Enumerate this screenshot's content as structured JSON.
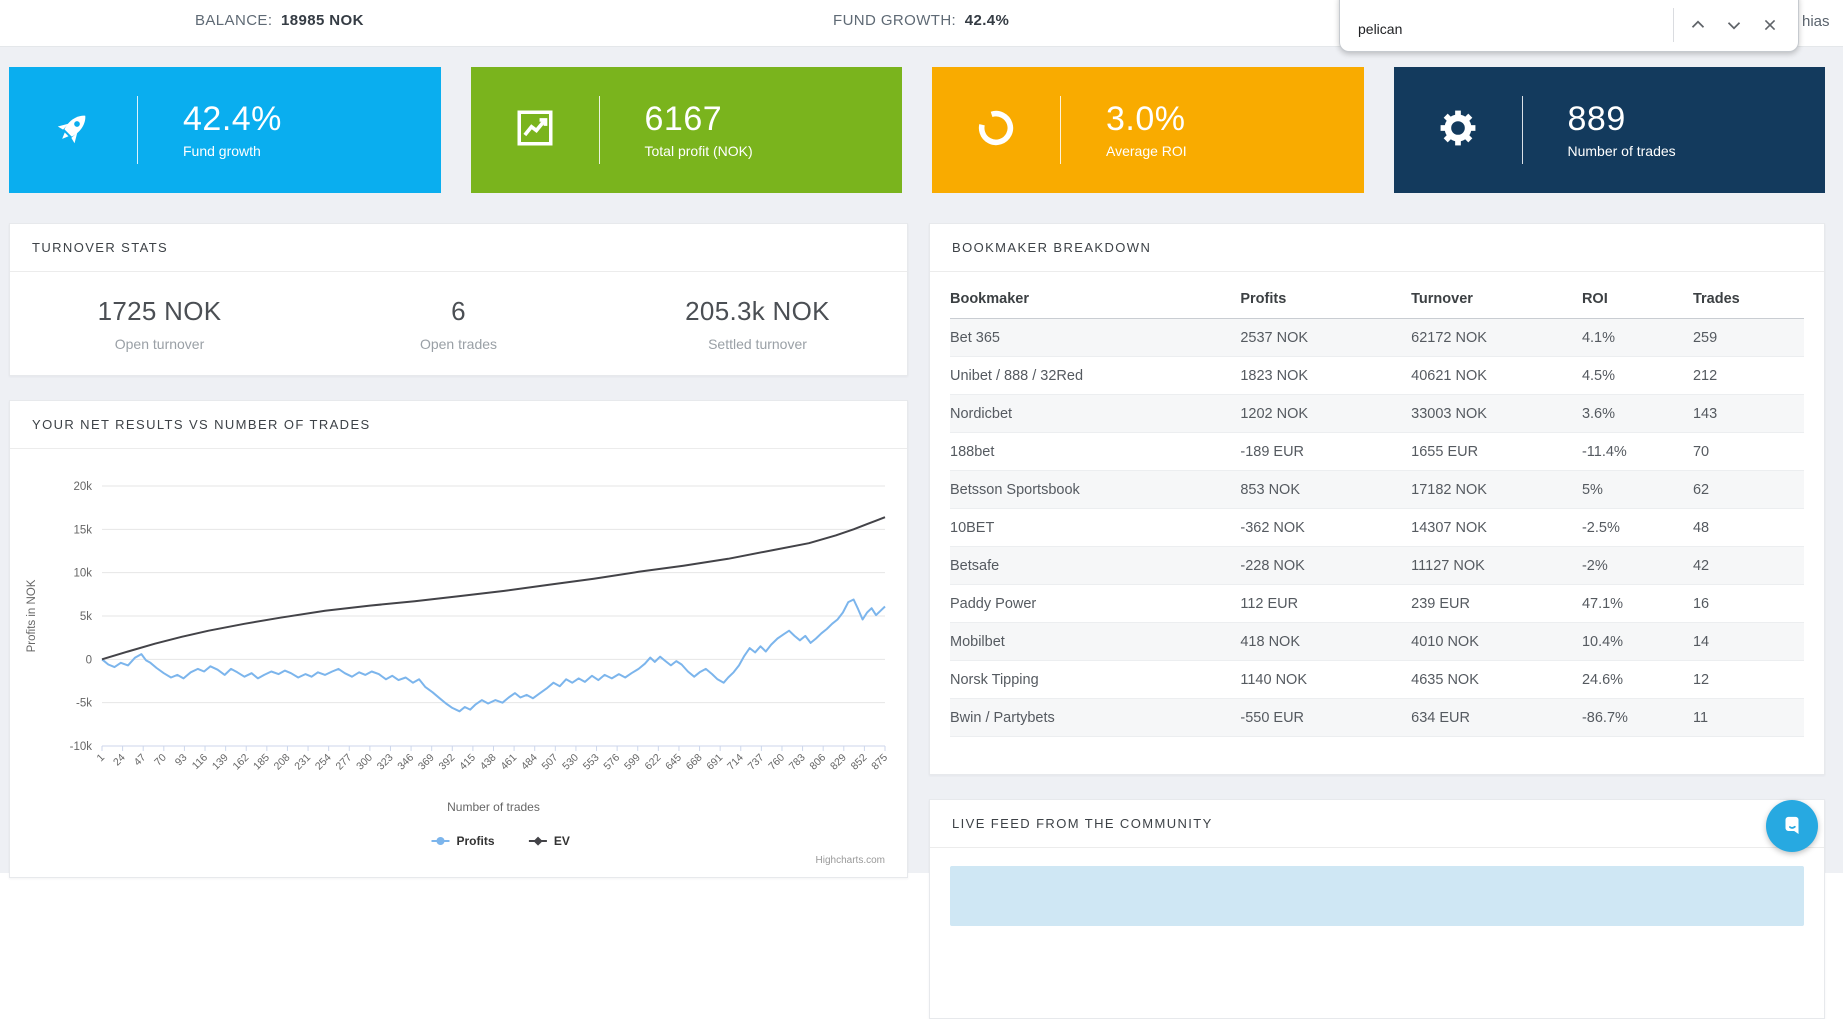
{
  "topbar": {
    "balance_label": "BALANCE:",
    "balance_value": "18985 NOK",
    "fund_growth_label": "FUND GROWTH:",
    "fund_growth_value": "42.4%",
    "username_fragment": "hias"
  },
  "findbar": {
    "query": "pelican",
    "prev_icon": "chevron-up-icon",
    "next_icon": "chevron-down-icon",
    "close_icon": "close-icon"
  },
  "stat_cards": [
    {
      "value": "42.4%",
      "label": "Fund growth",
      "color": "#0aaeef",
      "icon": "rocket-icon"
    },
    {
      "value": "6167",
      "label": "Total profit (NOK)",
      "color": "#7ab41d",
      "icon": "chart-line-icon"
    },
    {
      "value": "3.0%",
      "label": "Average ROI",
      "color": "#f9ab00",
      "icon": "refresh-icon"
    },
    {
      "value": "889",
      "label": "Number of trades",
      "color": "#133a5d",
      "icon": "gear-icon"
    }
  ],
  "turnover_panel": {
    "title": "TURNOVER STATS",
    "items": [
      {
        "value": "1725 NOK",
        "label": "Open turnover"
      },
      {
        "value": "6",
        "label": "Open trades"
      },
      {
        "value": "205.3k NOK",
        "label": "Settled turnover"
      }
    ]
  },
  "results_panel": {
    "title": "YOUR NET RESULTS VS NUMBER OF TRADES",
    "credit": "Highcharts.com"
  },
  "chart_data": {
    "type": "line",
    "title": "",
    "xlabel": "Number of trades",
    "ylabel": "Profits in NOK",
    "xlim": [
      1,
      875
    ],
    "ylim": [
      -10000,
      20000
    ],
    "grid": true,
    "legend_position": "bottom",
    "yticks": [
      20000,
      15000,
      10000,
      5000,
      0,
      -5000,
      -10000
    ],
    "ytick_labels": [
      "20k",
      "15k",
      "10k",
      "5k",
      "0",
      "-5k",
      "-10k"
    ],
    "xticks": [
      1,
      24,
      47,
      70,
      93,
      116,
      139,
      162,
      185,
      208,
      231,
      254,
      277,
      300,
      323,
      346,
      369,
      392,
      415,
      438,
      461,
      484,
      507,
      530,
      553,
      576,
      599,
      622,
      645,
      668,
      691,
      714,
      737,
      760,
      783,
      806,
      829,
      852,
      875
    ],
    "series": [
      {
        "name": "Profits",
        "color": "#7cb5ec",
        "marker": "circle",
        "points": [
          [
            1,
            0
          ],
          [
            8,
            -600
          ],
          [
            15,
            -900
          ],
          [
            22,
            -400
          ],
          [
            30,
            -700
          ],
          [
            38,
            200
          ],
          [
            45,
            600
          ],
          [
            50,
            -100
          ],
          [
            55,
            -400
          ],
          [
            62,
            -1000
          ],
          [
            70,
            -1600
          ],
          [
            78,
            -2100
          ],
          [
            85,
            -1800
          ],
          [
            92,
            -2200
          ],
          [
            100,
            -1500
          ],
          [
            108,
            -1100
          ],
          [
            115,
            -1400
          ],
          [
            122,
            -800
          ],
          [
            130,
            -1200
          ],
          [
            138,
            -1800
          ],
          [
            145,
            -1100
          ],
          [
            152,
            -1500
          ],
          [
            160,
            -2000
          ],
          [
            168,
            -1600
          ],
          [
            175,
            -2200
          ],
          [
            182,
            -1800
          ],
          [
            190,
            -1400
          ],
          [
            198,
            -1700
          ],
          [
            205,
            -1300
          ],
          [
            212,
            -1600
          ],
          [
            220,
            -2100
          ],
          [
            228,
            -1700
          ],
          [
            235,
            -2000
          ],
          [
            242,
            -1500
          ],
          [
            250,
            -1800
          ],
          [
            258,
            -1400
          ],
          [
            265,
            -1100
          ],
          [
            272,
            -1600
          ],
          [
            280,
            -2000
          ],
          [
            288,
            -1500
          ],
          [
            295,
            -1800
          ],
          [
            302,
            -1400
          ],
          [
            310,
            -1700
          ],
          [
            318,
            -2300
          ],
          [
            325,
            -1900
          ],
          [
            332,
            -2400
          ],
          [
            340,
            -2100
          ],
          [
            348,
            -2700
          ],
          [
            355,
            -2300
          ],
          [
            362,
            -3200
          ],
          [
            370,
            -3800
          ],
          [
            378,
            -4500
          ],
          [
            385,
            -5100
          ],
          [
            392,
            -5600
          ],
          [
            400,
            -6000
          ],
          [
            406,
            -5500
          ],
          [
            412,
            -5800
          ],
          [
            418,
            -5200
          ],
          [
            425,
            -4700
          ],
          [
            432,
            -5100
          ],
          [
            440,
            -4700
          ],
          [
            448,
            -5000
          ],
          [
            455,
            -4400
          ],
          [
            462,
            -3900
          ],
          [
            468,
            -4400
          ],
          [
            475,
            -4100
          ],
          [
            482,
            -4500
          ],
          [
            490,
            -3900
          ],
          [
            498,
            -3300
          ],
          [
            505,
            -2700
          ],
          [
            512,
            -3100
          ],
          [
            519,
            -2300
          ],
          [
            526,
            -2700
          ],
          [
            533,
            -2200
          ],
          [
            540,
            -2600
          ],
          [
            548,
            -1900
          ],
          [
            555,
            -2400
          ],
          [
            562,
            -1800
          ],
          [
            570,
            -2200
          ],
          [
            578,
            -1700
          ],
          [
            585,
            -2100
          ],
          [
            592,
            -1600
          ],
          [
            600,
            -1100
          ],
          [
            607,
            -500
          ],
          [
            613,
            200
          ],
          [
            618,
            -300
          ],
          [
            624,
            300
          ],
          [
            630,
            -200
          ],
          [
            636,
            -700
          ],
          [
            642,
            -200
          ],
          [
            648,
            -600
          ],
          [
            655,
            -1400
          ],
          [
            662,
            -2000
          ],
          [
            668,
            -1500
          ],
          [
            675,
            -1100
          ],
          [
            682,
            -1700
          ],
          [
            688,
            -2300
          ],
          [
            695,
            -2700
          ],
          [
            700,
            -2100
          ],
          [
            706,
            -1500
          ],
          [
            712,
            -700
          ],
          [
            718,
            400
          ],
          [
            724,
            1300
          ],
          [
            730,
            800
          ],
          [
            736,
            1500
          ],
          [
            742,
            900
          ],
          [
            748,
            1700
          ],
          [
            755,
            2400
          ],
          [
            762,
            2900
          ],
          [
            768,
            3300
          ],
          [
            774,
            2700
          ],
          [
            780,
            2200
          ],
          [
            786,
            2700
          ],
          [
            792,
            1900
          ],
          [
            798,
            2400
          ],
          [
            804,
            3000
          ],
          [
            810,
            3500
          ],
          [
            816,
            4100
          ],
          [
            822,
            4600
          ],
          [
            828,
            5400
          ],
          [
            834,
            6600
          ],
          [
            840,
            6900
          ],
          [
            845,
            5800
          ],
          [
            850,
            4600
          ],
          [
            855,
            5400
          ],
          [
            860,
            5900
          ],
          [
            865,
            5100
          ],
          [
            870,
            5600
          ],
          [
            875,
            6100
          ]
        ]
      },
      {
        "name": "EV",
        "color": "#434348",
        "marker": "diamond",
        "points": [
          [
            1,
            0
          ],
          [
            30,
            900
          ],
          [
            60,
            1800
          ],
          [
            90,
            2600
          ],
          [
            120,
            3300
          ],
          [
            160,
            4100
          ],
          [
            200,
            4800
          ],
          [
            250,
            5600
          ],
          [
            300,
            6200
          ],
          [
            350,
            6700
          ],
          [
            400,
            7300
          ],
          [
            450,
            7900
          ],
          [
            500,
            8600
          ],
          [
            550,
            9300
          ],
          [
            600,
            10100
          ],
          [
            650,
            10800
          ],
          [
            700,
            11600
          ],
          [
            750,
            12600
          ],
          [
            790,
            13400
          ],
          [
            820,
            14300
          ],
          [
            840,
            15000
          ],
          [
            855,
            15600
          ],
          [
            865,
            16000
          ],
          [
            875,
            16400
          ]
        ]
      }
    ],
    "credit": "Highcharts.com"
  },
  "bookmaker_panel": {
    "title": "BOOKMAKER BREAKDOWN",
    "columns": [
      "Bookmaker",
      "Profits",
      "Turnover",
      "ROI",
      "Trades"
    ],
    "rows": [
      [
        "Bet 365",
        "2537 NOK",
        "62172 NOK",
        "4.1%",
        "259"
      ],
      [
        "Unibet / 888 / 32Red",
        "1823 NOK",
        "40621 NOK",
        "4.5%",
        "212"
      ],
      [
        "Nordicbet",
        "1202 NOK",
        "33003 NOK",
        "3.6%",
        "143"
      ],
      [
        "188bet",
        "-189 EUR",
        "1655 EUR",
        "-11.4%",
        "70"
      ],
      [
        "Betsson Sportsbook",
        "853 NOK",
        "17182 NOK",
        "5%",
        "62"
      ],
      [
        "10BET",
        "-362 NOK",
        "14307 NOK",
        "-2.5%",
        "48"
      ],
      [
        "Betsafe",
        "-228 NOK",
        "11127 NOK",
        "-2%",
        "42"
      ],
      [
        "Paddy Power",
        "112 EUR",
        "239 EUR",
        "47.1%",
        "16"
      ],
      [
        "Mobilbet",
        "418 NOK",
        "4010 NOK",
        "10.4%",
        "14"
      ],
      [
        "Norsk Tipping",
        "1140 NOK",
        "4635 NOK",
        "24.6%",
        "12"
      ],
      [
        "Bwin / Partybets",
        "-550 EUR",
        "634 EUR",
        "-86.7%",
        "11"
      ]
    ]
  },
  "livefeed_panel": {
    "title": "LIVE FEED FROM THE COMMUNITY"
  },
  "chat_button": {
    "color": "#27a9e1",
    "icon": "chat-bubble-icon"
  }
}
